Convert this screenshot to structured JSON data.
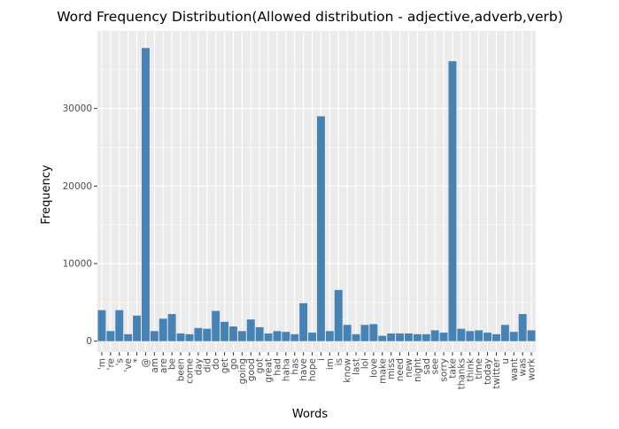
{
  "chart_data": {
    "type": "bar",
    "title": "Word Frequency Distribution(Allowed distribution - adjective,adverb,verb)",
    "xlabel": "Words",
    "ylabel": "Frequency",
    "ylim": [
      -1400,
      40000
    ],
    "yticks": [
      0,
      10000,
      20000,
      30000
    ],
    "grid": true,
    "bar_color": "#4682b4",
    "panel_color": "#ebebeb",
    "grid_color": "#ffffff",
    "categories": [
      "'m",
      "'re",
      "'s",
      "'ve",
      "*",
      "@",
      "am",
      "are",
      "be",
      "been",
      "come",
      "day",
      "did",
      "do",
      "get",
      "go",
      "going",
      "good",
      "got",
      "great",
      "had",
      "haha",
      "has",
      "have",
      "hope",
      "i",
      "im",
      "is",
      "know",
      "last",
      "lol",
      "love",
      "make",
      "miss",
      "need",
      "new",
      "night",
      "sad",
      "see",
      "sorry",
      "take",
      "thanks",
      "think",
      "time",
      "today",
      "twitter",
      "u",
      "want",
      "was",
      "work"
    ],
    "values": [
      4000,
      1300,
      4000,
      900,
      3300,
      37800,
      1300,
      2900,
      3500,
      1000,
      900,
      1700,
      1600,
      3900,
      2500,
      1900,
      1300,
      2800,
      1800,
      1000,
      1300,
      1200,
      900,
      4900,
      1100,
      29000,
      1300,
      6600,
      2100,
      900,
      2100,
      2200,
      700,
      1000,
      1000,
      1000,
      900,
      900,
      1400,
      1100,
      36100,
      1600,
      1300,
      1400,
      1100,
      900,
      2100,
      1200,
      3500,
      1400
    ]
  }
}
